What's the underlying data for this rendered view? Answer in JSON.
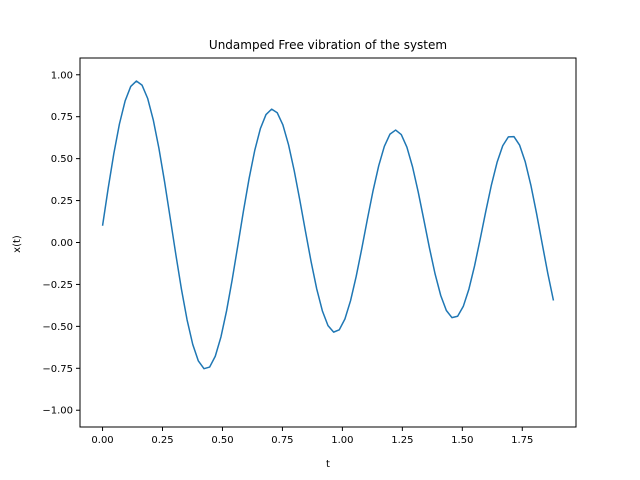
{
  "chart_data": {
    "type": "line",
    "title": "Undamped Free vibration of the system",
    "xlabel": "t",
    "ylabel": "x(t)",
    "xlim": [
      -0.094,
      1.974
    ],
    "ylim": [
      -1.1,
      1.1
    ],
    "xticks": [
      0.0,
      0.25,
      0.5,
      0.75,
      1.0,
      1.25,
      1.5,
      1.75
    ],
    "xtick_labels": [
      "0.00",
      "0.25",
      "0.50",
      "0.75",
      "1.00",
      "1.25",
      "1.50",
      "1.75"
    ],
    "yticks": [
      -1.0,
      -0.75,
      -0.5,
      -0.25,
      0.0,
      0.25,
      0.5,
      0.75,
      1.0
    ],
    "ytick_labels": [
      "−1.00",
      "−0.75",
      "−0.50",
      "−0.25",
      "0.00",
      "0.25",
      "0.50",
      "0.75",
      "1.00"
    ],
    "grid": false,
    "legend": "none",
    "series": [
      {
        "color": "#1f77b4",
        "x": [
          0.0,
          0.0235,
          0.047,
          0.0705,
          0.094,
          0.1175,
          0.141,
          0.1645,
          0.188,
          0.2115,
          0.235,
          0.2585,
          0.282,
          0.3055,
          0.329,
          0.3525,
          0.376,
          0.3995,
          0.423,
          0.4465,
          0.47,
          0.4935,
          0.517,
          0.5405,
          0.564,
          0.5875,
          0.611,
          0.6345,
          0.658,
          0.6815,
          0.705,
          0.7285,
          0.752,
          0.7755,
          0.799,
          0.8225,
          0.846,
          0.8695,
          0.893,
          0.9165,
          0.94,
          0.9635,
          0.987,
          1.0105,
          1.034,
          1.0575,
          1.081,
          1.1045,
          1.128,
          1.1515,
          1.175,
          1.1985,
          1.222,
          1.2455,
          1.269,
          1.2925,
          1.316,
          1.3395,
          1.363,
          1.3865,
          1.41,
          1.4335,
          1.457,
          1.4805,
          1.504,
          1.5275,
          1.551,
          1.5745,
          1.598,
          1.6215,
          1.645,
          1.6685,
          1.692,
          1.7155,
          1.739,
          1.7625,
          1.786,
          1.8095,
          1.833,
          1.8565,
          1.88
        ],
        "y": [
          0.1,
          0.3232,
          0.5301,
          0.7073,
          0.8436,
          0.9305,
          0.9627,
          0.9384,
          0.8593,
          0.7309,
          0.5618,
          0.3629,
          0.1472,
          -0.0712,
          -0.2787,
          -0.4616,
          -0.6074,
          -0.7064,
          -0.7524,
          -0.7426,
          -0.6781,
          -0.5638,
          -0.408,
          -0.2219,
          -0.0184,
          0.1878,
          0.3812,
          0.5487,
          0.6788,
          0.7629,
          0.7951,
          0.7735,
          0.7006,
          0.5826,
          0.4292,
          0.2527,
          0.0669,
          -0.1141,
          -0.2768,
          -0.4076,
          -0.4958,
          -0.5344,
          -0.5206,
          -0.4562,
          -0.3469,
          -0.2024,
          -0.0351,
          0.1408,
          0.3098,
          0.4581,
          0.5734,
          0.6462,
          0.6703,
          0.6436,
          0.5682,
          0.4508,
          0.3021,
          0.1359,
          -0.0324,
          -0.1877,
          -0.316,
          -0.4055,
          -0.4481,
          -0.4397,
          -0.3811,
          -0.2778,
          -0.1397,
          0.0203,
          0.1867,
          0.3442,
          0.4784,
          0.5767,
          0.6296,
          0.6311,
          0.5801,
          0.4804,
          0.3405,
          0.1732,
          -0.0068,
          -0.1849,
          -0.346
        ]
      }
    ]
  }
}
